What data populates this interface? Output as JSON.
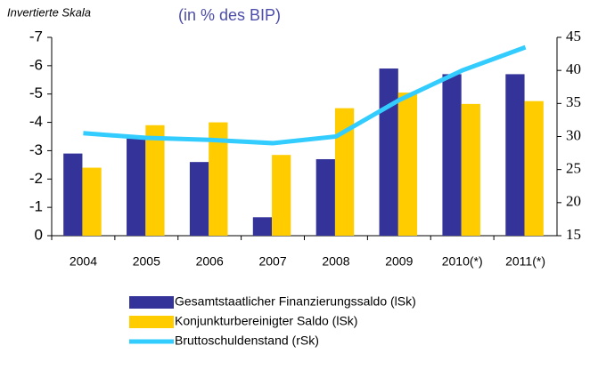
{
  "chart_data": {
    "type": "bar",
    "subtitle": "(in % des BIP)",
    "annotation": "Invertierte Skala",
    "categories": [
      "2004",
      "2005",
      "2006",
      "2007",
      "2008",
      "2009",
      "2010(*)",
      "2011(*)"
    ],
    "series": [
      {
        "name": "Gesamtstaatlicher Finanzierungssaldo (lSk)",
        "color": "#333399",
        "values": [
          -2.9,
          -3.5,
          -2.6,
          -0.65,
          -2.7,
          -5.9,
          -5.7,
          -5.7
        ]
      },
      {
        "name": "Konjunkturbereinigter Saldo (lSk)",
        "color": "#ffcc00",
        "values": [
          -2.4,
          -3.9,
          -4.0,
          -2.85,
          -4.5,
          -5.05,
          -4.65,
          -4.75
        ]
      },
      {
        "name": "Bruttoschuldenstand (rSk)",
        "color": "#33ccff",
        "axis": "y2",
        "type": "line",
        "values": [
          30.5,
          29.8,
          29.5,
          29.0,
          30.0,
          35.5,
          40.0,
          43.5
        ]
      }
    ],
    "ylim": [
      0,
      -7
    ],
    "yticks": [
      -7,
      -6,
      -5,
      -4,
      -3,
      -2,
      -1,
      0
    ],
    "y2lim": [
      15,
      45
    ],
    "y2ticks": [
      15,
      20,
      25,
      30,
      35,
      40,
      45
    ]
  }
}
